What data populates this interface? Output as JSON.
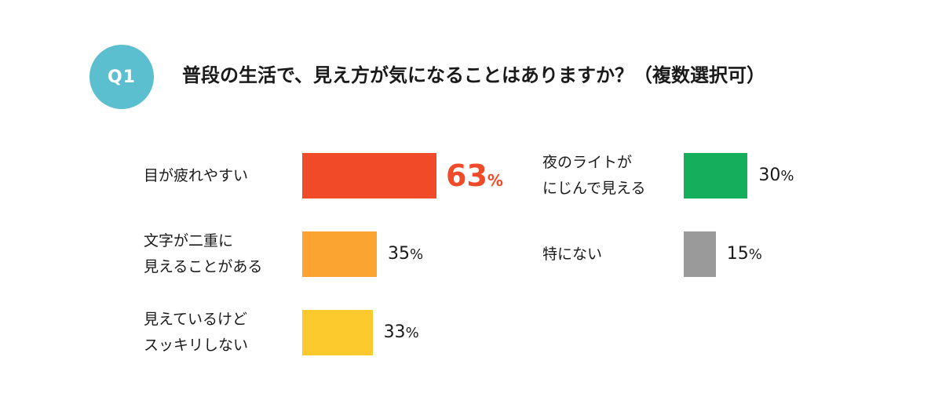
{
  "badge": {
    "label": "Q1",
    "color": "#5bbfcf"
  },
  "question": "普段の生活で、見え方が気になることはありますか？（複数選択可）",
  "chart_data": {
    "type": "bar",
    "orientation": "horizontal",
    "unit": "%",
    "items": [
      {
        "label_lines": [
          "目が疲れやすい"
        ],
        "value": 63,
        "value_label": "63",
        "unit": "%",
        "color": "#f04a28",
        "highlight": true
      },
      {
        "label_lines": [
          "文字が二重に",
          "見えることがある"
        ],
        "value": 35,
        "value_label": "35",
        "unit": "%",
        "color": "#fba432",
        "highlight": false
      },
      {
        "label_lines": [
          "見えているけど",
          "スッキリしない"
        ],
        "value": 33,
        "value_label": "33",
        "unit": "%",
        "color": "#fdca2e",
        "highlight": false
      },
      {
        "label_lines": [
          "夜のライトが",
          "にじんで見える"
        ],
        "value": 30,
        "value_label": "30",
        "unit": "%",
        "color": "#15ae5c",
        "highlight": false
      },
      {
        "label_lines": [
          "特にない"
        ],
        "value": 15,
        "value_label": "15",
        "unit": "%",
        "color": "#9b9a9b",
        "highlight": false
      }
    ]
  }
}
